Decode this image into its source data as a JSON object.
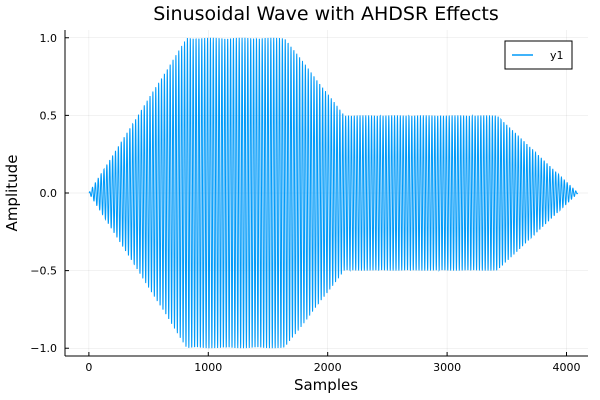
{
  "chart_data": {
    "type": "line",
    "title": "Sinusoidal Wave with AHDSR Effects",
    "xlabel": "Samples",
    "ylabel": "Amplitude",
    "xlim": [
      -200,
      4180
    ],
    "ylim": [
      -1.05,
      1.05
    ],
    "grid": true,
    "legend_position": "top-right",
    "x_ticks": [
      0,
      1000,
      2000,
      3000,
      4000
    ],
    "x_tick_labels": [
      "0",
      "1000",
      "2000",
      "3000",
      "4000"
    ],
    "y_ticks": [
      1.0,
      0.5,
      0.0,
      -0.5,
      -1.0
    ],
    "y_tick_labels": [
      "1.0",
      "0.5",
      "0.0",
      "−0.5",
      "−1.0"
    ],
    "series": [
      {
        "name": "y1",
        "color": "#009af9",
        "samples": 4096,
        "cycles": 170,
        "envelope_x": [
          0,
          820,
          1640,
          2140,
          3420,
          4096
        ],
        "envelope_y": [
          0.0,
          1.0,
          1.0,
          0.5,
          0.5,
          0.0
        ]
      }
    ]
  }
}
